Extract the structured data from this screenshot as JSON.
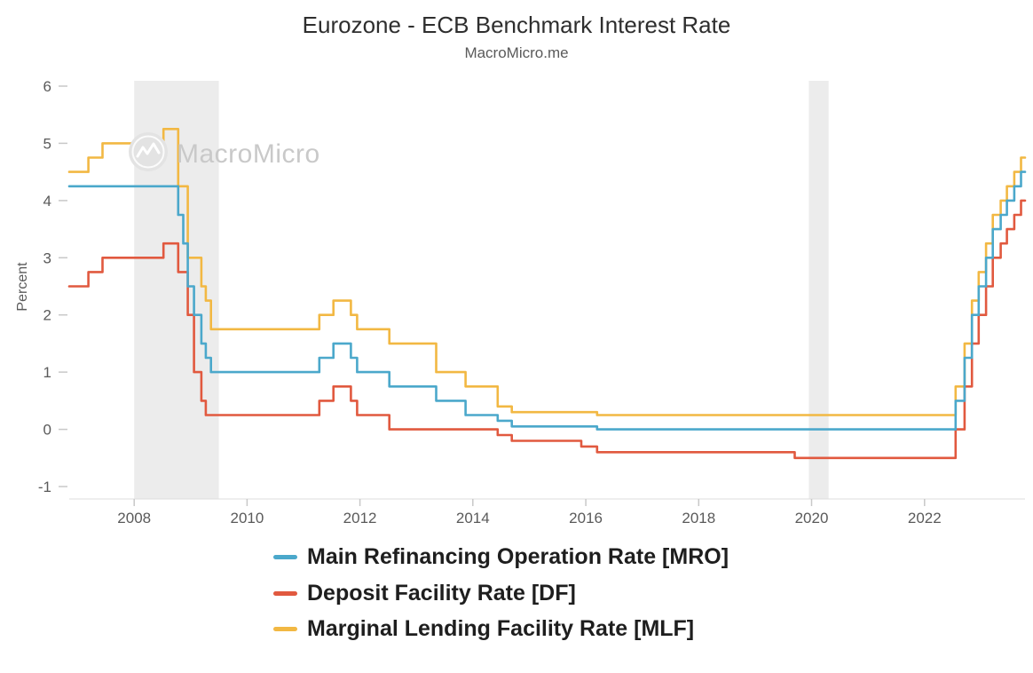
{
  "header": {
    "title": "Eurozone - ECB Benchmark Interest Rate",
    "subtitle": "MacroMicro.me"
  },
  "watermark": {
    "text": "MacroMicro"
  },
  "chart_data": {
    "type": "line",
    "step": true,
    "title": "Eurozone - ECB Benchmark Interest Rate",
    "subtitle": "MacroMicro.me",
    "xlabel": "",
    "ylabel": "Percent",
    "x_range": [
      2006.85,
      2023.78
    ],
    "ylim": [
      -1,
      6
    ],
    "y_ticks": [
      6,
      5,
      4,
      3,
      2,
      1,
      0,
      -1
    ],
    "x_ticks": [
      2008,
      2010,
      2012,
      2014,
      2016,
      2018,
      2020,
      2022
    ],
    "grid": false,
    "legend_position": "bottom-left",
    "axis_color": "#5a5a5a",
    "band_color": "#ececec",
    "recession_bands": [
      [
        2008.0,
        2009.5
      ],
      [
        2019.95,
        2020.3
      ]
    ],
    "series": [
      {
        "name": "Main Refinancing Operation Rate [MRO]",
        "color": "#4BA8CB",
        "points": [
          [
            2006.85,
            4.25
          ],
          [
            2008.78,
            3.75
          ],
          [
            2008.87,
            3.25
          ],
          [
            2008.95,
            2.5
          ],
          [
            2009.06,
            2.0
          ],
          [
            2009.19,
            1.5
          ],
          [
            2009.27,
            1.25
          ],
          [
            2009.36,
            1.0
          ],
          [
            2011.28,
            1.25
          ],
          [
            2011.53,
            1.5
          ],
          [
            2011.84,
            1.25
          ],
          [
            2011.95,
            1.0
          ],
          [
            2012.52,
            0.75
          ],
          [
            2013.35,
            0.5
          ],
          [
            2013.87,
            0.25
          ],
          [
            2014.44,
            0.15
          ],
          [
            2014.69,
            0.05
          ],
          [
            2016.2,
            0.0
          ],
          [
            2022.55,
            0.5
          ],
          [
            2022.71,
            1.25
          ],
          [
            2022.84,
            2.0
          ],
          [
            2022.96,
            2.5
          ],
          [
            2023.09,
            3.0
          ],
          [
            2023.21,
            3.5
          ],
          [
            2023.35,
            3.75
          ],
          [
            2023.46,
            4.0
          ],
          [
            2023.59,
            4.25
          ],
          [
            2023.71,
            4.5
          ]
        ]
      },
      {
        "name": "Deposit Facility Rate [DF]",
        "color": "#E1593F",
        "points": [
          [
            2006.85,
            2.5
          ],
          [
            2007.19,
            2.75
          ],
          [
            2007.44,
            3.0
          ],
          [
            2008.52,
            3.25
          ],
          [
            2008.78,
            2.75
          ],
          [
            2008.95,
            2.0
          ],
          [
            2009.06,
            1.0
          ],
          [
            2009.19,
            0.5
          ],
          [
            2009.27,
            0.25
          ],
          [
            2011.28,
            0.5
          ],
          [
            2011.53,
            0.75
          ],
          [
            2011.84,
            0.5
          ],
          [
            2011.95,
            0.25
          ],
          [
            2012.52,
            0.0
          ],
          [
            2014.44,
            -0.1
          ],
          [
            2014.69,
            -0.2
          ],
          [
            2015.92,
            -0.3
          ],
          [
            2016.2,
            -0.4
          ],
          [
            2019.7,
            -0.5
          ],
          [
            2022.55,
            0.0
          ],
          [
            2022.71,
            0.75
          ],
          [
            2022.84,
            1.5
          ],
          [
            2022.96,
            2.0
          ],
          [
            2023.09,
            2.5
          ],
          [
            2023.21,
            3.0
          ],
          [
            2023.35,
            3.25
          ],
          [
            2023.46,
            3.5
          ],
          [
            2023.59,
            3.75
          ],
          [
            2023.71,
            4.0
          ]
        ]
      },
      {
        "name": "Marginal Lending Facility Rate [MLF]",
        "color": "#F2B843",
        "points": [
          [
            2006.85,
            4.5
          ],
          [
            2007.19,
            4.75
          ],
          [
            2007.44,
            5.0
          ],
          [
            2008.52,
            5.25
          ],
          [
            2008.78,
            4.25
          ],
          [
            2008.95,
            3.0
          ],
          [
            2009.19,
            2.5
          ],
          [
            2009.27,
            2.25
          ],
          [
            2009.36,
            1.75
          ],
          [
            2011.28,
            2.0
          ],
          [
            2011.53,
            2.25
          ],
          [
            2011.84,
            2.0
          ],
          [
            2011.95,
            1.75
          ],
          [
            2012.52,
            1.5
          ],
          [
            2013.35,
            1.0
          ],
          [
            2013.87,
            0.75
          ],
          [
            2014.44,
            0.4
          ],
          [
            2014.69,
            0.3
          ],
          [
            2016.2,
            0.25
          ],
          [
            2022.55,
            0.75
          ],
          [
            2022.71,
            1.5
          ],
          [
            2022.84,
            2.25
          ],
          [
            2022.96,
            2.75
          ],
          [
            2023.09,
            3.25
          ],
          [
            2023.21,
            3.75
          ],
          [
            2023.35,
            4.0
          ],
          [
            2023.46,
            4.25
          ],
          [
            2023.59,
            4.5
          ],
          [
            2023.71,
            4.75
          ]
        ]
      }
    ]
  }
}
